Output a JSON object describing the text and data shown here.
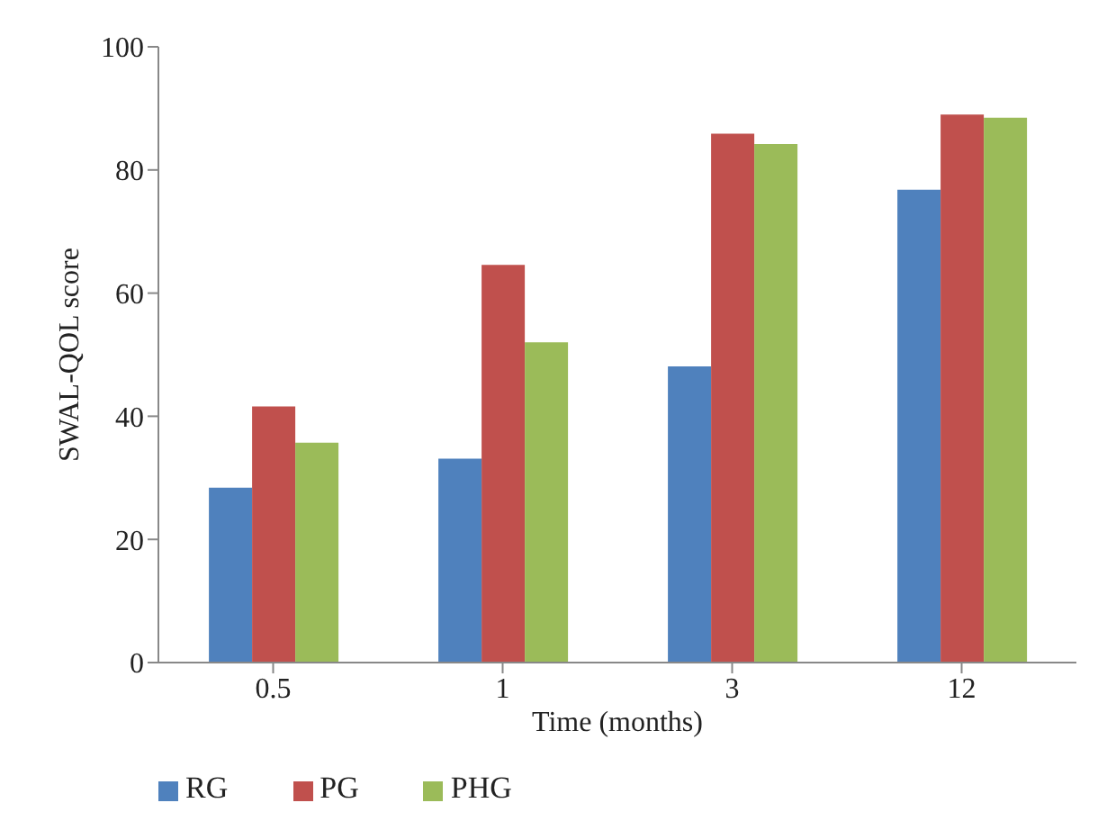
{
  "chart_data": {
    "type": "bar",
    "xlabel": "Time (months)",
    "ylabel": "SWAL-QOL score",
    "categories": [
      "0.5",
      "1",
      "3",
      "12"
    ],
    "series": [
      {
        "name": "RG",
        "color": "#4f81bd",
        "values": [
          28.4,
          33.1,
          48.1,
          76.8
        ]
      },
      {
        "name": "PG",
        "color": "#c0504d",
        "values": [
          41.6,
          64.6,
          85.9,
          89
        ]
      },
      {
        "name": "PHG",
        "color": "#9bbb59",
        "values": [
          35.7,
          52,
          84.2,
          88.5
        ]
      }
    ],
    "ylim": [
      0,
      100
    ],
    "yticks": [
      0,
      20,
      40,
      60,
      80,
      100
    ],
    "grid": false,
    "legend": "bottom left"
  }
}
